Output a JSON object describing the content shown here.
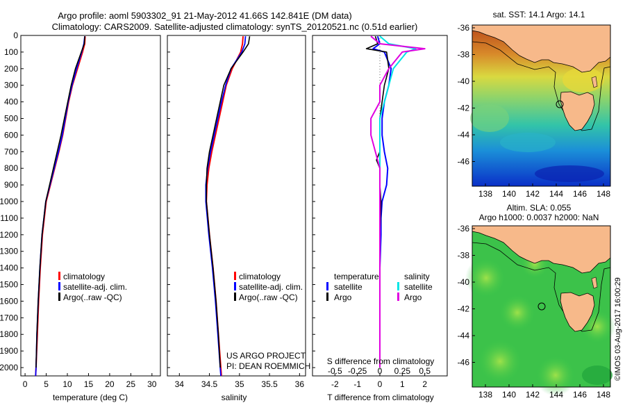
{
  "header": {
    "line1": "Argo profile: aoml 5903302_91 21-May-2012 41.66S 142.841E (DM data)",
    "line2": "Climatology: CARS2009. Satellite-adjusted climatology: synTS_20120521.nc (0.51d earlier)"
  },
  "colors": {
    "climatology": "#ff0000",
    "satellite": "#0000ff",
    "argo": "#000000",
    "sal_satellite": "#00e5e5",
    "sal_argo": "#e000e0",
    "land": "#f7b98a"
  },
  "credits": {
    "project": "US ARGO PROJECT",
    "pi": "PI: DEAN ROEMMICH",
    "imos": "©IMOS 03-Aug-2017 16:00:29"
  },
  "legend_clim": [
    "climatology",
    "satellite-adj. clim.",
    "Argo(..raw -QC)"
  ],
  "legend_diff": {
    "temperature": "temperature",
    "salinity": "salinity",
    "satellite": "satellite",
    "argo": "Argo"
  },
  "chart_data": [
    {
      "id": "temperature",
      "type": "line",
      "xlabel": "temperature (deg C)",
      "ylabel": "",
      "xlim": [
        -1,
        32
      ],
      "ylim": [
        2050,
        0
      ],
      "xticks": [
        0,
        5,
        10,
        15,
        20,
        25,
        30
      ],
      "yticks": [
        0,
        100,
        200,
        300,
        400,
        500,
        600,
        700,
        800,
        900,
        1000,
        1100,
        1200,
        1300,
        1400,
        1500,
        1600,
        1700,
        1800,
        1900,
        2000
      ],
      "series": [
        {
          "name": "climatology",
          "depth": [
            5,
            50,
            100,
            200,
            300,
            400,
            500,
            600,
            700,
            800,
            900,
            1000,
            1200,
            1400,
            1600,
            1800,
            2000,
            2050
          ],
          "values": [
            14.2,
            14.1,
            13.6,
            12.4,
            11.2,
            10.3,
            9.6,
            8.9,
            8.0,
            7.0,
            6.0,
            5.0,
            4.1,
            3.6,
            3.2,
            2.9,
            2.6,
            2.5
          ]
        },
        {
          "name": "satellite-adj. clim.",
          "depth": [
            5,
            50,
            100,
            200,
            300,
            400,
            500,
            600,
            700,
            800,
            900,
            1000,
            1200,
            1400,
            1600,
            1800,
            2000,
            2050
          ],
          "values": [
            14.1,
            13.9,
            13.4,
            12.2,
            11.1,
            10.2,
            9.5,
            8.8,
            7.9,
            6.9,
            5.9,
            4.9,
            4.0,
            3.5,
            3.1,
            2.8,
            2.6,
            2.5
          ]
        },
        {
          "name": "Argo(..raw -QC)",
          "depth": [
            5,
            50,
            100,
            200,
            300,
            400,
            500,
            600,
            700,
            800,
            900,
            1000,
            1200,
            1400,
            1600,
            1800,
            2000
          ],
          "values": [
            14.1,
            14.0,
            13.3,
            11.9,
            10.9,
            10.1,
            9.3,
            8.5,
            7.6,
            6.7,
            5.8,
            4.9,
            4.0,
            3.5,
            3.1,
            2.8,
            2.6
          ]
        }
      ]
    },
    {
      "id": "salinity",
      "type": "line",
      "xlabel": "salinity",
      "ylabel": "",
      "xlim": [
        33.8,
        36.1
      ],
      "ylim": [
        2050,
        0
      ],
      "xticks": [
        34,
        34.5,
        35,
        35.5,
        36
      ],
      "series": [
        {
          "name": "climatology",
          "depth": [
            5,
            50,
            100,
            200,
            300,
            400,
            500,
            600,
            700,
            800,
            900,
            1000,
            1200,
            1400,
            1600,
            1800,
            2000,
            2050
          ],
          "values": [
            35.06,
            35.05,
            35.02,
            34.88,
            34.78,
            34.72,
            34.66,
            34.6,
            34.54,
            34.49,
            34.46,
            34.45,
            34.5,
            34.56,
            34.61,
            34.65,
            34.69,
            34.7
          ]
        },
        {
          "name": "satellite-adj. clim.",
          "depth": [
            5,
            50,
            100,
            200,
            300,
            400,
            500,
            600,
            700,
            800,
            900,
            1000,
            1200,
            1400,
            1600,
            1800,
            2000,
            2050
          ],
          "values": [
            35.1,
            35.09,
            35.04,
            34.86,
            34.77,
            34.7,
            34.64,
            34.58,
            34.52,
            34.47,
            34.44,
            34.44,
            34.49,
            34.55,
            34.6,
            34.64,
            34.68,
            34.69
          ]
        },
        {
          "name": "Argo(..raw -QC)",
          "depth": [
            5,
            50,
            100,
            200,
            300,
            400,
            500,
            600,
            700,
            800,
            900,
            1000,
            1200,
            1400,
            1600,
            1800,
            2000
          ],
          "values": [
            35.17,
            35.15,
            35.06,
            34.86,
            34.74,
            34.68,
            34.62,
            34.56,
            34.5,
            34.46,
            34.45,
            34.45,
            34.5,
            34.56,
            34.61,
            34.65,
            34.68
          ]
        }
      ]
    },
    {
      "id": "difference",
      "type": "line",
      "xlabel": "T difference from climatology",
      "ylabel": "",
      "xlim": [
        -3,
        3
      ],
      "ylim": [
        2050,
        0
      ],
      "xticks": [
        -2,
        -1,
        0,
        1,
        2
      ],
      "xticks2_label": "S difference from climatology",
      "xticks2": [
        "-0.5",
        "-0.25",
        "0",
        "0.25",
        "0.5"
      ],
      "series": [
        {
          "name": "temperature satellite",
          "depth": [
            5,
            50,
            80,
            100,
            200,
            300,
            400,
            500,
            600,
            700,
            800,
            900,
            1000,
            1100,
            1200,
            1400,
            1600,
            1800,
            2000
          ],
          "values": [
            -0.1,
            0.0,
            -0.3,
            0.2,
            0.5,
            0.4,
            0.2,
            0.1,
            0.1,
            0.2,
            0.35,
            0.3,
            0.1,
            0.05,
            0.05,
            0.0,
            0.0,
            0.0,
            0.0
          ]
        },
        {
          "name": "temperature Argo",
          "depth": [
            5,
            50,
            80,
            100,
            200,
            300,
            400,
            500,
            600,
            700,
            750,
            800,
            900,
            1000,
            1200,
            1400,
            1600,
            1800,
            2000
          ],
          "values": [
            -0.2,
            -0.1,
            -0.6,
            0.3,
            0.4,
            0.2,
            0.1,
            0.0,
            0.0,
            0.0,
            -0.15,
            0.0,
            0.0,
            0.05,
            0.0,
            0.0,
            0.0,
            0.0,
            0.0
          ]
        },
        {
          "name": "salinity satellite",
          "depth": [
            5,
            50,
            80,
            100,
            200,
            300,
            400,
            500,
            700,
            900,
            1200,
            1500,
            1800,
            2000
          ],
          "values": [
            0.0,
            0.1,
            0.4,
            0.3,
            0.15,
            0.1,
            0.05,
            0.0,
            0.0,
            0.0,
            0.0,
            0.0,
            0.0,
            0.0
          ]
        },
        {
          "name": "salinity Argo",
          "depth": [
            5,
            50,
            80,
            100,
            200,
            300,
            400,
            500,
            600,
            700,
            800,
            900,
            1000,
            1200,
            1400,
            1600,
            1800,
            2000
          ],
          "values": [
            -0.1,
            0.0,
            0.5,
            0.25,
            0.1,
            0.0,
            0.0,
            -0.1,
            -0.1,
            -0.05,
            0.0,
            0.0,
            0.0,
            0.0,
            0.0,
            0.0,
            0.0,
            0.0
          ]
        }
      ]
    },
    {
      "id": "sst-map",
      "type": "heatmap",
      "title": "sat. SST: 14.1  Argo: 14.1",
      "xticks": [
        "138",
        "140",
        "142",
        "144",
        "146",
        "148"
      ],
      "yticks": [
        "-36",
        "-38",
        "-40",
        "-42",
        "-44",
        "-46"
      ],
      "marker": {
        "lon": 142.841,
        "lat": -41.66
      }
    },
    {
      "id": "sla-map",
      "type": "heatmap",
      "title_line1": "Altim. SLA: 0.055",
      "title_line2": "Argo h1000: 0.0037  h2000: NaN",
      "xticks": [
        "138",
        "140",
        "142",
        "144",
        "146",
        "148"
      ],
      "yticks": [
        "-36",
        "-38",
        "-40",
        "-42",
        "-44",
        "-46"
      ],
      "marker": {
        "lon": 142.841,
        "lat": -41.66
      }
    }
  ]
}
